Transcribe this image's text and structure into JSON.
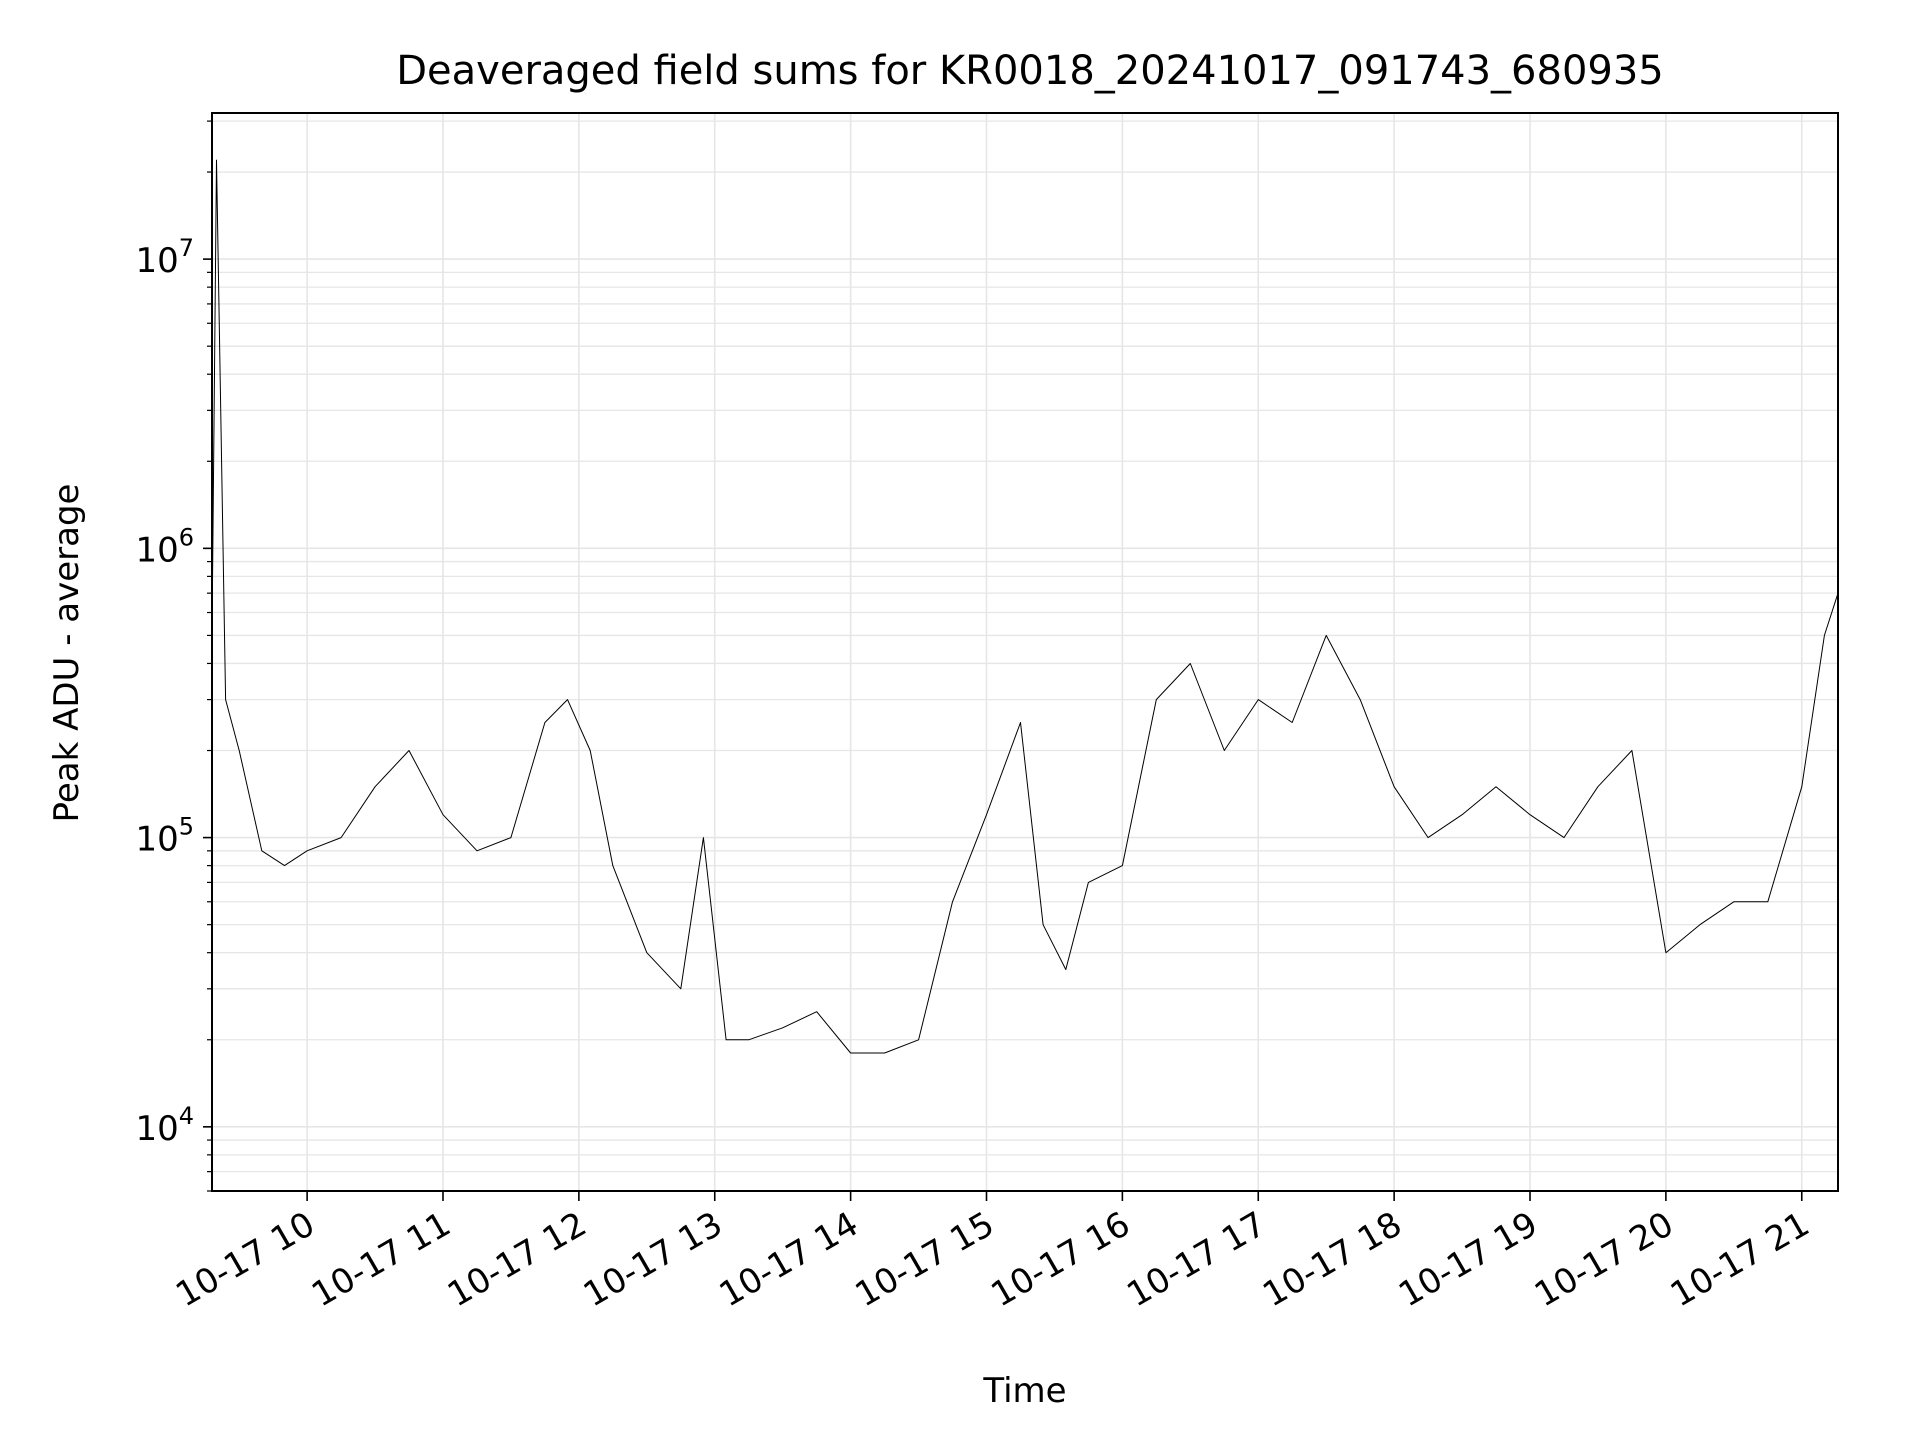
{
  "chart_data": {
    "type": "line",
    "title": "Deaveraged field sums for KR0018_20241017_091743_680935",
    "xlabel": "Time",
    "ylabel": "Peak ADU - average",
    "yscale": "log",
    "ylim": [
      6000,
      32000000
    ],
    "xlim": [
      "2024-10-17T09:18",
      "2024-10-17T21:16"
    ],
    "grid": true,
    "line_color": "#000000",
    "x_tick_labels": [
      {
        "time": "2024-10-17T10:00",
        "label": "10-17 10"
      },
      {
        "time": "2024-10-17T11:00",
        "label": "10-17 11"
      },
      {
        "time": "2024-10-17T12:00",
        "label": "10-17 12"
      },
      {
        "time": "2024-10-17T13:00",
        "label": "10-17 13"
      },
      {
        "time": "2024-10-17T14:00",
        "label": "10-17 14"
      },
      {
        "time": "2024-10-17T15:00",
        "label": "10-17 15"
      },
      {
        "time": "2024-10-17T16:00",
        "label": "10-17 16"
      },
      {
        "time": "2024-10-17T17:00",
        "label": "10-17 17"
      },
      {
        "time": "2024-10-17T18:00",
        "label": "10-17 18"
      },
      {
        "time": "2024-10-17T19:00",
        "label": "10-17 19"
      },
      {
        "time": "2024-10-17T20:00",
        "label": "10-17 20"
      },
      {
        "time": "2024-10-17T21:00",
        "label": "10-17 21"
      }
    ],
    "y_tick_labels": [
      {
        "value": 10000,
        "base": "10",
        "exp": "4"
      },
      {
        "value": 100000,
        "base": "10",
        "exp": "5"
      },
      {
        "value": 1000000,
        "base": "10",
        "exp": "6"
      },
      {
        "value": 10000000,
        "base": "10",
        "exp": "7"
      }
    ],
    "series": [
      {
        "x": [
          "2024-10-17T09:18",
          "2024-10-17T09:20",
          "2024-10-17T09:24",
          "2024-10-17T09:30",
          "2024-10-17T09:40",
          "2024-10-17T09:50",
          "2024-10-17T10:00",
          "2024-10-17T10:15",
          "2024-10-17T10:30",
          "2024-10-17T10:45",
          "2024-10-17T11:00",
          "2024-10-17T11:15",
          "2024-10-17T11:30",
          "2024-10-17T11:45",
          "2024-10-17T11:55",
          "2024-10-17T12:05",
          "2024-10-17T12:15",
          "2024-10-17T12:30",
          "2024-10-17T12:45",
          "2024-10-17T12:55",
          "2024-10-17T13:05",
          "2024-10-17T13:15",
          "2024-10-17T13:30",
          "2024-10-17T13:45",
          "2024-10-17T14:00",
          "2024-10-17T14:15",
          "2024-10-17T14:30",
          "2024-10-17T14:45",
          "2024-10-17T15:00",
          "2024-10-17T15:15",
          "2024-10-17T15:25",
          "2024-10-17T15:35",
          "2024-10-17T15:45",
          "2024-10-17T16:00",
          "2024-10-17T16:15",
          "2024-10-17T16:30",
          "2024-10-17T16:45",
          "2024-10-17T17:00",
          "2024-10-17T17:15",
          "2024-10-17T17:30",
          "2024-10-17T17:45",
          "2024-10-17T18:00",
          "2024-10-17T18:15",
          "2024-10-17T18:30",
          "2024-10-17T18:45",
          "2024-10-17T19:00",
          "2024-10-17T19:15",
          "2024-10-17T19:30",
          "2024-10-17T19:45",
          "2024-10-17T20:00",
          "2024-10-17T20:15",
          "2024-10-17T20:30",
          "2024-10-17T20:45",
          "2024-10-17T21:00",
          "2024-10-17T21:10",
          "2024-10-17T21:16"
        ],
        "y": [
          500000,
          22000000,
          300000,
          200000,
          90000,
          80000,
          90000,
          100000,
          150000,
          200000,
          120000,
          90000,
          100000,
          250000,
          300000,
          200000,
          80000,
          40000,
          30000,
          100000,
          20000,
          20000,
          22000,
          25000,
          18000,
          18000,
          20000,
          60000,
          120000,
          250000,
          50000,
          35000,
          70000,
          80000,
          300000,
          400000,
          200000,
          300000,
          250000,
          500000,
          300000,
          150000,
          100000,
          120000,
          150000,
          120000,
          100000,
          150000,
          200000,
          40000,
          50000,
          60000,
          60000,
          150000,
          500000,
          700000
        ]
      }
    ]
  }
}
